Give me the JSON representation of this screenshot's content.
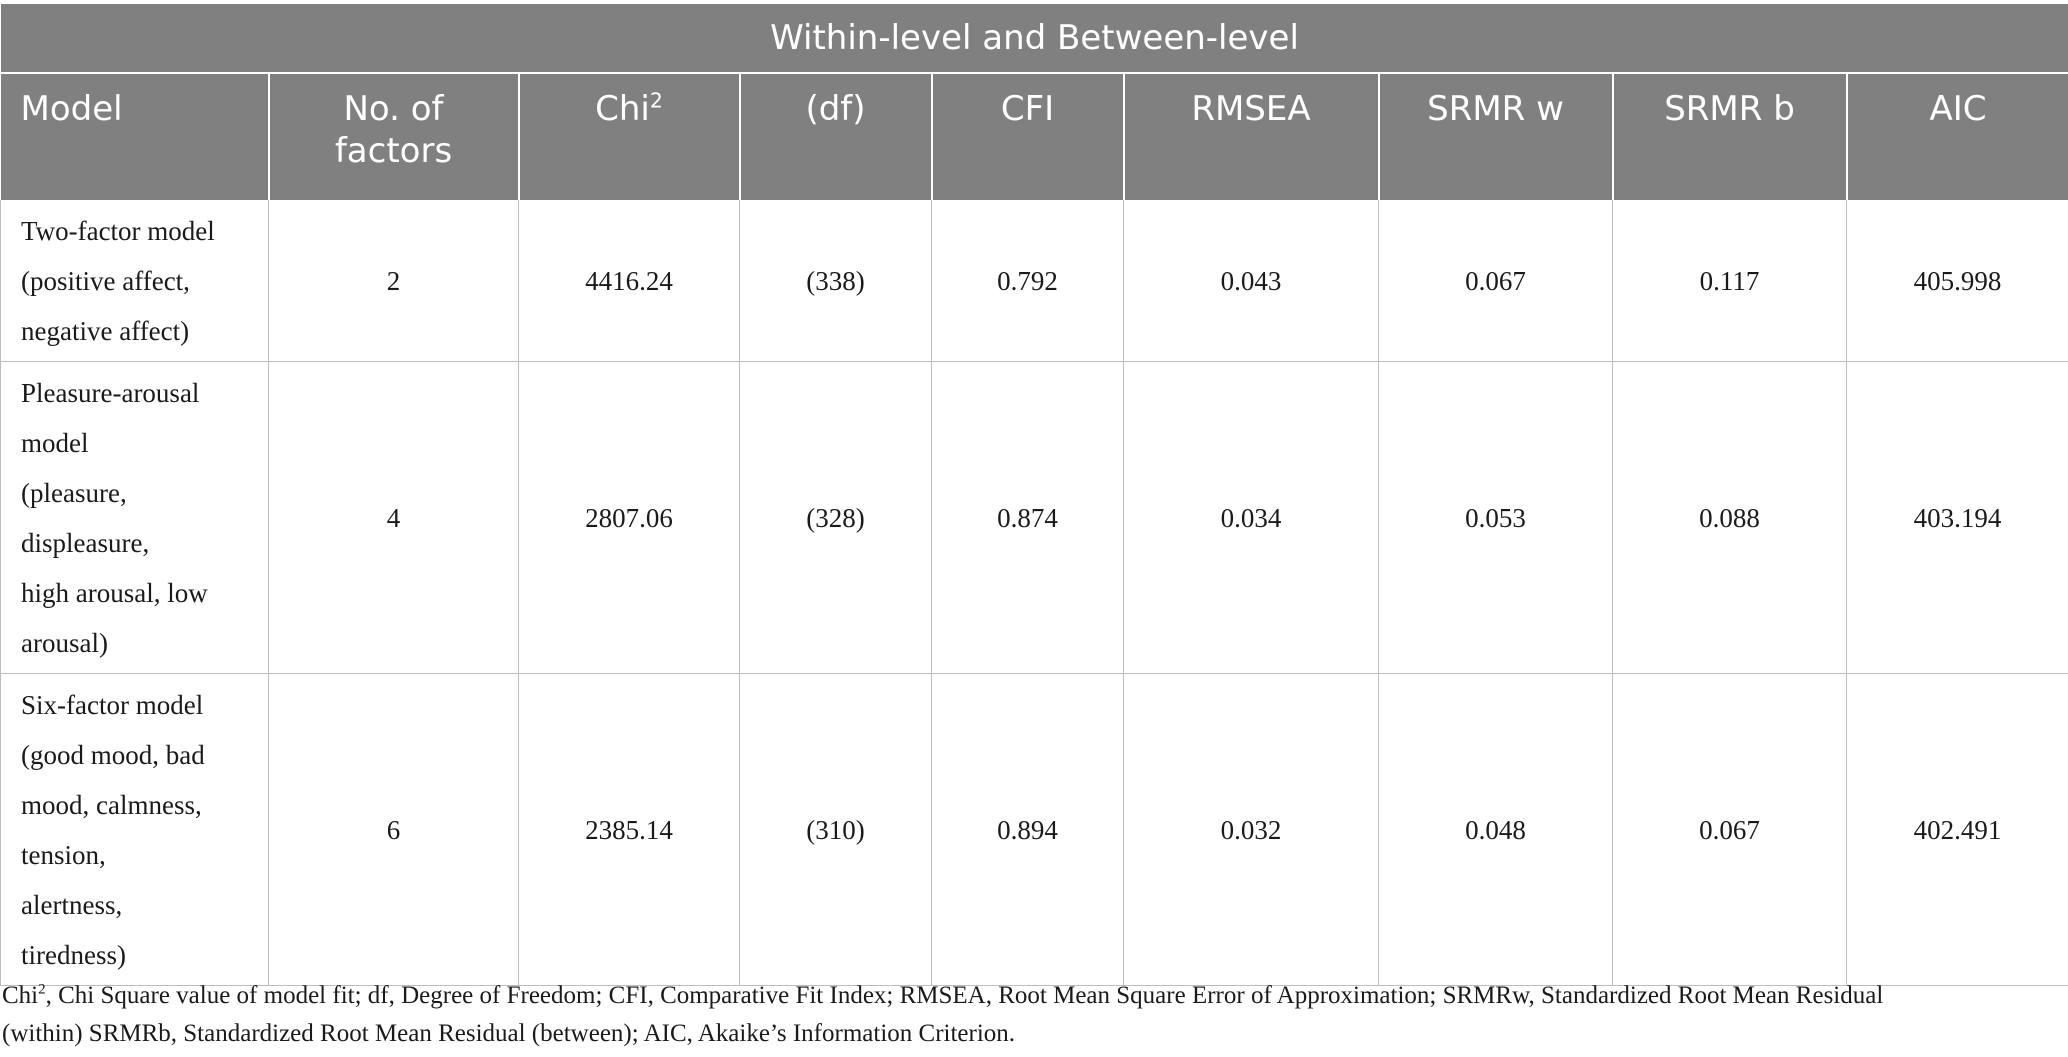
{
  "table": {
    "title": "Within-level and Between-level",
    "headers": {
      "model": "Model",
      "factors": [
        "No. of",
        "factors"
      ],
      "chi_base": "Chi",
      "chi_sup": "2",
      "df": "(df)",
      "cfi": "CFI",
      "rmsea": "RMSEA",
      "srmr_w": "SRMR w",
      "srmr_b": "SRMR b",
      "aic": "AIC"
    },
    "rows": [
      {
        "model_lines": [
          "Two-factor model",
          "(positive affect,",
          "negative affect)"
        ],
        "factors": "2",
        "chi2": "4416.24",
        "df": "(338)",
        "cfi": "0.792",
        "rmsea": "0.043",
        "srmr_w": "0.067",
        "srmr_b": "0.117",
        "aic": "405.998"
      },
      {
        "model_lines": [
          "Pleasure-arousal",
          "model",
          "(pleasure,",
          "displeasure,",
          "high arousal, low",
          "arousal)"
        ],
        "factors": "4",
        "chi2": "2807.06",
        "df": "(328)",
        "cfi": "0.874",
        "rmsea": "0.034",
        "srmr_w": "0.053",
        "srmr_b": "0.088",
        "aic": "403.194"
      },
      {
        "model_lines": [
          "Six-factor model",
          "(good mood, bad",
          "mood, calmness,",
          "tension,",
          "alertness,",
          "tiredness)"
        ],
        "factors": "6",
        "chi2": "2385.14",
        "df": "(310)",
        "cfi": "0.894",
        "rmsea": "0.032",
        "srmr_w": "0.048",
        "srmr_b": "0.067",
        "aic": "402.491"
      }
    ]
  },
  "footnote": {
    "chi_base": "Chi",
    "chi_sup": "2",
    "line1_rest": ", Chi Square value of model fit; df, Degree of Freedom; CFI, Comparative Fit Index; RMSEA, Root Mean Square Error of Approximation; SRMRw, Standardized Root Mean Residual",
    "line2": "(within) SRMRb, Standardized Root Mean Residual (between); AIC, Akaike’s Information Criterion."
  },
  "colors": {
    "header_bg": "#808080",
    "header_text": "#ffffff",
    "grid": "#bdbdbd"
  }
}
